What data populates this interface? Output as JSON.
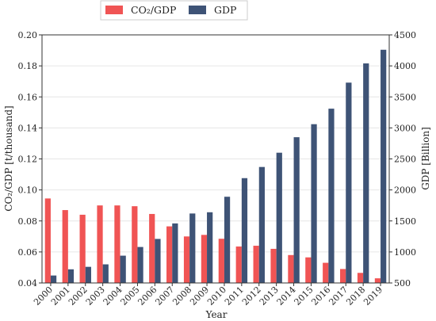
{
  "chart_data": {
    "type": "bar",
    "title": "",
    "xlabel": "Year",
    "ylabel_left": "CO₂/GDP [t/thousand]",
    "ylabel_right": "GDP [Billion]",
    "categories": [
      "2000",
      "2001",
      "2002",
      "2003",
      "2004",
      "2005",
      "2006",
      "2007",
      "2008",
      "2009",
      "2010",
      "2011",
      "2012",
      "2013",
      "2014",
      "2015",
      "2016",
      "2017",
      "2018",
      "2019"
    ],
    "ylim_left": [
      0.04,
      0.2
    ],
    "yticks_left": [
      "0.04",
      "0.06",
      "0.08",
      "0.10",
      "0.12",
      "0.14",
      "0.16",
      "0.18",
      "0.20"
    ],
    "ylim_right": [
      500,
      4500
    ],
    "yticks_right": [
      "500",
      "1000",
      "1500",
      "2000",
      "2500",
      "3000",
      "3500",
      "4000",
      "4500"
    ],
    "grid": "horizontal",
    "legend_position": "top-center",
    "series": [
      {
        "name": "CO₂/GDP",
        "axis": "left",
        "color": "#f05454",
        "values": [
          0.0945,
          0.087,
          0.084,
          0.09,
          0.09,
          0.0895,
          0.0845,
          0.0765,
          0.07,
          0.071,
          0.0685,
          0.0635,
          0.064,
          0.062,
          0.058,
          0.0565,
          0.053,
          0.049,
          0.0465,
          0.043
        ]
      },
      {
        "name": "GDP",
        "axis": "right",
        "color": "#3e5376",
        "values": [
          620,
          720,
          760,
          800,
          940,
          1080,
          1210,
          1460,
          1620,
          1640,
          1890,
          2190,
          2370,
          2600,
          2850,
          3060,
          3310,
          3730,
          4040,
          4260
        ]
      }
    ]
  }
}
